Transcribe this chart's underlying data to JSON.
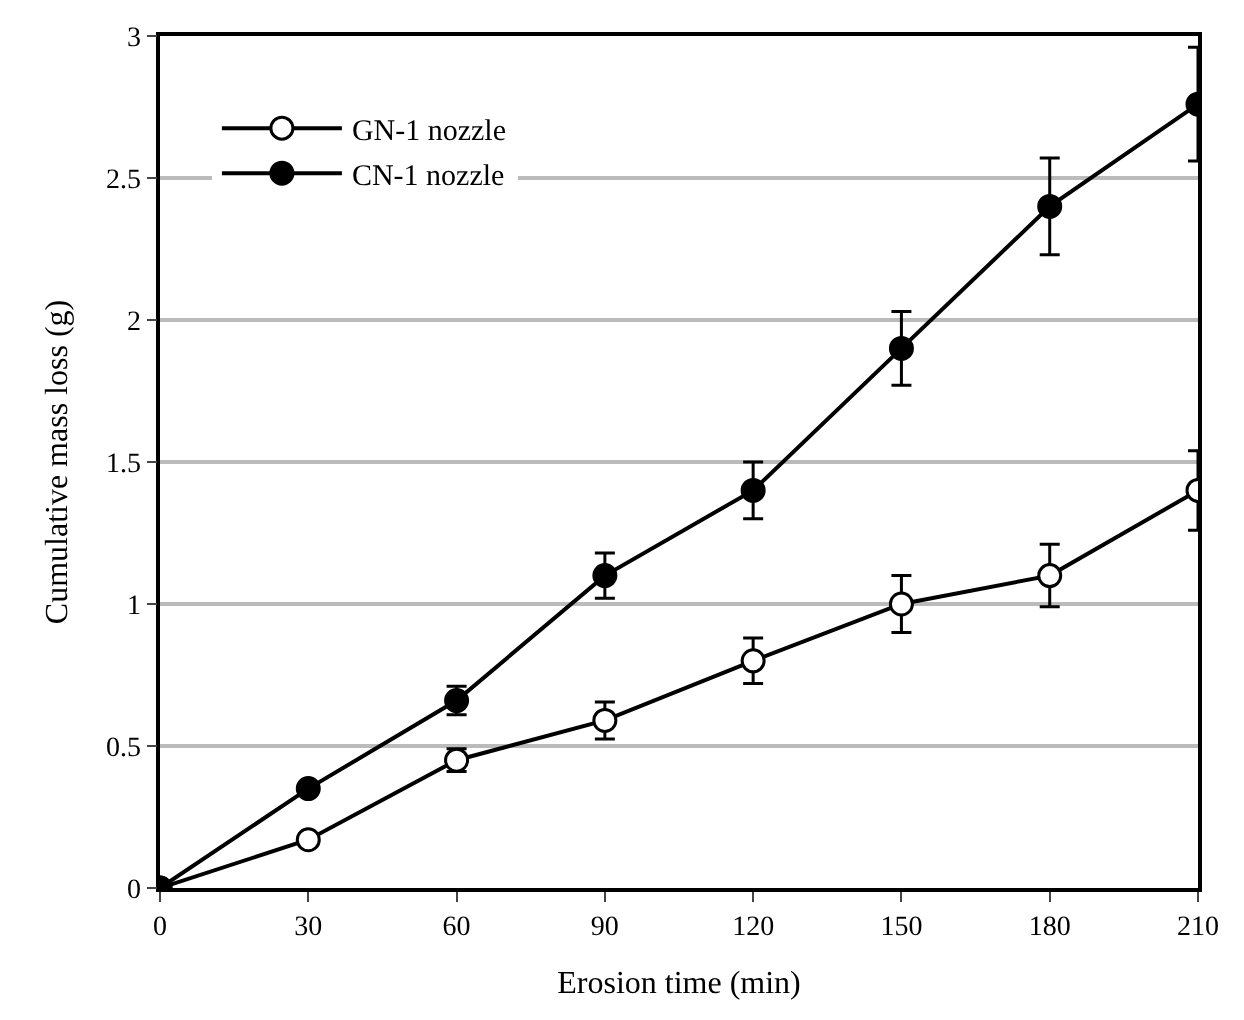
{
  "chart_data": {
    "type": "line",
    "xlabel": "Erosion time (min)",
    "ylabel": "Cumulative mass loss (g)",
    "x": [
      0,
      30,
      60,
      90,
      120,
      150,
      180,
      210
    ],
    "series": [
      {
        "name": "GN-1 nozzle",
        "color": "#000000",
        "values": [
          0,
          0.17,
          0.45,
          0.59,
          0.8,
          1.0,
          1.1,
          1.4
        ],
        "errors": [
          null,
          0.02,
          0.04,
          0.065,
          0.08,
          0.1,
          0.11,
          0.14
        ]
      },
      {
        "name": "CN-1 nozzle",
        "color": "#000000",
        "values": [
          0,
          0.35,
          0.66,
          1.1,
          1.4,
          1.9,
          2.4,
          2.76
        ],
        "errors": [
          null,
          0.02,
          0.05,
          0.08,
          0.1,
          0.13,
          0.17,
          0.2
        ]
      }
    ],
    "xlim": [
      0,
      210
    ],
    "xticks": [
      0,
      30,
      60,
      90,
      120,
      150,
      180,
      210
    ],
    "ylim": [
      0,
      3
    ],
    "yticks": [
      0,
      0.5,
      1,
      1.5,
      2,
      2.5,
      3
    ],
    "grid": "y",
    "legend": "top left",
    "marker": "circle",
    "line_style": "solid"
  }
}
